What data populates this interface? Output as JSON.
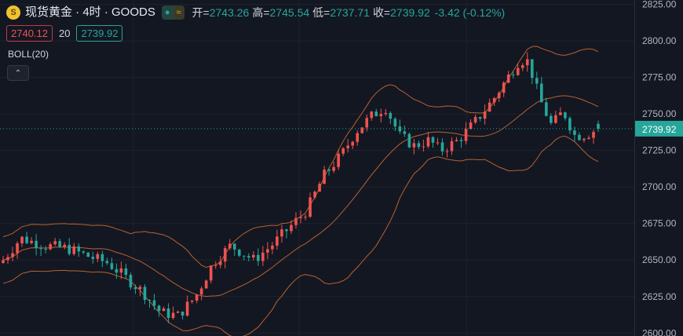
{
  "header": {
    "symbol": "现货黄金 · 4时 · GOODS",
    "logo_glyph": "S",
    "pill_dot": "●",
    "pill_icon": "≈",
    "open_label": "开=",
    "open": "2743.26",
    "high_label": "高=",
    "high": "2745.54",
    "low_label": "低=",
    "low": "2737.71",
    "close_label": "收=",
    "close": "2739.92",
    "change": "-3.42 (-0.12%)"
  },
  "order": {
    "sell": "2740.12",
    "spread": "20",
    "buy": "2739.92"
  },
  "indicator": {
    "name": "BOLL(20)",
    "collapse_glyph": "⌃"
  },
  "colors": {
    "background": "#131722",
    "up": "#ef5350",
    "down": "#26a69a",
    "band": "#b8612e",
    "grid": "#1e222d",
    "last_price": "#26a69a"
  },
  "chart_data": {
    "type": "candlestick",
    "y_axis_ticks": [
      "2825.00",
      "2800.00",
      "2775.00",
      "2750.00",
      "2725.00",
      "2700.00",
      "2675.00",
      "2650.00",
      "2625.00",
      "2600.00"
    ],
    "ylim": [
      2598,
      2828
    ],
    "last_price": "2739.92",
    "candles": [],
    "bollinger": {
      "upper": [],
      "middle": [],
      "lower": []
    }
  }
}
